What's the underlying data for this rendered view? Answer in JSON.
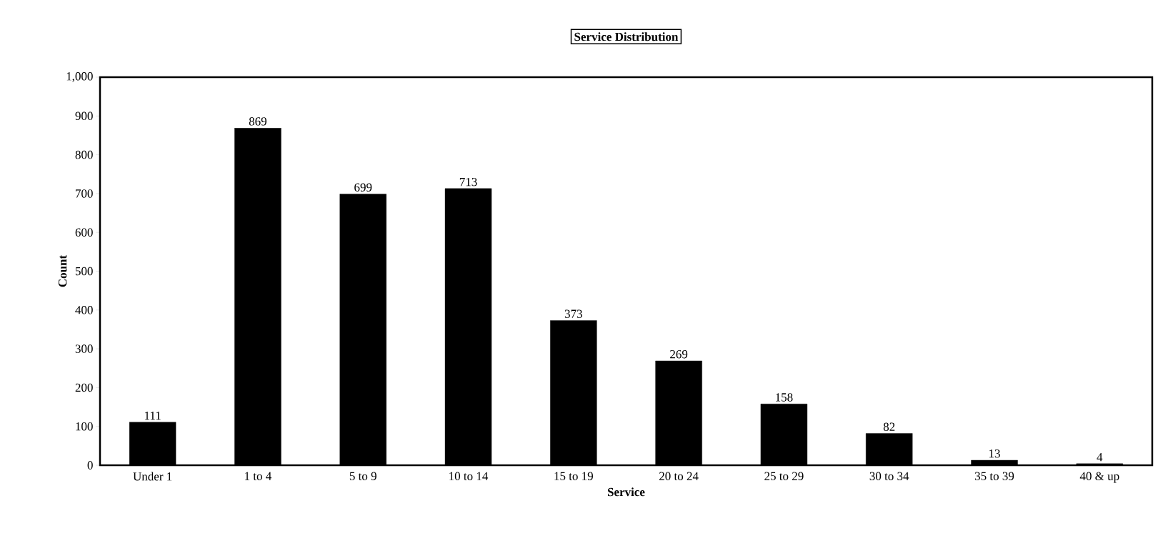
{
  "chart_data": {
    "type": "bar",
    "title": "Service Distribution",
    "xlabel": "Service",
    "ylabel": "Count",
    "categories": [
      "Under 1",
      "1 to 4",
      "5 to 9",
      "10 to 14",
      "15 to 19",
      "20 to 24",
      "25 to 29",
      "30 to 34",
      "35 to 39",
      "40 & up"
    ],
    "values": [
      111,
      869,
      699,
      713,
      373,
      269,
      158,
      82,
      13,
      4
    ],
    "color": "#000000",
    "ylim": [
      0,
      1000
    ],
    "yticks": [
      0,
      100,
      200,
      300,
      400,
      500,
      600,
      700,
      800,
      900,
      {
        "value": 1000,
        "label": "1,000"
      }
    ],
    "data_labels": true
  }
}
